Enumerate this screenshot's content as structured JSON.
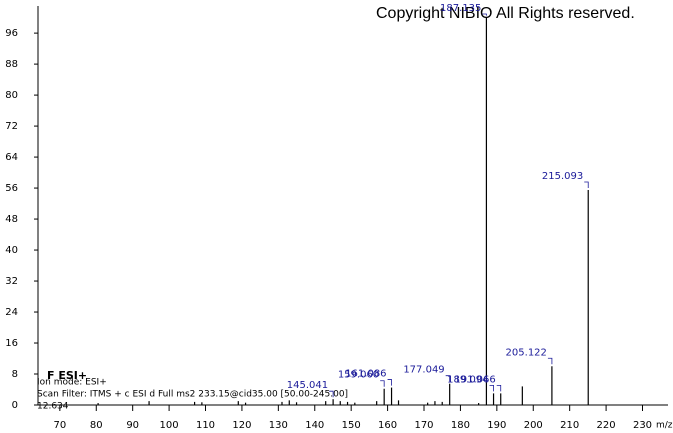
{
  "chart_data": {
    "type": "stick",
    "copyright": "Copyright NIBIO All Rights reserved.",
    "header": "F ESI+",
    "ion_mode": "Ion mode: ESI+",
    "scan_filter": "Scan Filter: ITMS + c ESI d Full ms2 233.15@cid35.00 [50.00-245.00]",
    "retention_time": "12.634",
    "x_label": "m/z",
    "xlim": [
      64,
      237
    ],
    "xticks": [
      70,
      80,
      90,
      100,
      110,
      120,
      130,
      140,
      150,
      160,
      170,
      180,
      190,
      200,
      210,
      220,
      230
    ],
    "ylim": [
      0,
      103
    ],
    "yticks": [
      0,
      8,
      16,
      24,
      32,
      40,
      48,
      56,
      64,
      72,
      80,
      88,
      96
    ],
    "color": "#000000",
    "label_color": "#1a1a99",
    "x": [
      80.5,
      94.5,
      107,
      109,
      119,
      121,
      131,
      133,
      135,
      143,
      145.041,
      147,
      149,
      151,
      157,
      159.06,
      161.086,
      163,
      171,
      173,
      175,
      177.049,
      185,
      187.135,
      189.094,
      191.066,
      197,
      205.122,
      215.093
    ],
    "values": [
      0.5,
      1,
      0.8,
      0.7,
      1,
      0.6,
      0.8,
      1.2,
      0.7,
      1,
      1.5,
      1,
      0.8,
      0.6,
      1,
      4.2,
      4.5,
      1.2,
      0.6,
      1,
      0.8,
      5.5,
      0.5,
      100,
      3,
      3,
      4.8,
      10,
      55.5
    ],
    "peak_labels": [
      null,
      null,
      null,
      null,
      null,
      null,
      null,
      null,
      null,
      null,
      "145.041",
      null,
      null,
      null,
      null,
      "159.060",
      "161.086",
      null,
      null,
      null,
      null,
      "177.049",
      null,
      "187.135",
      "189.094",
      "191.066",
      null,
      "205.122",
      "215.093"
    ]
  }
}
